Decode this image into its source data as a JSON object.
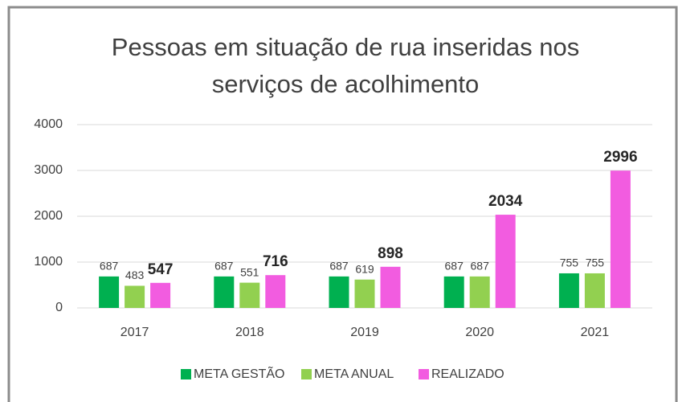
{
  "chart_data": {
    "type": "bar",
    "title": "Pessoas em situação de rua inseridas nos serviços de acolhimento",
    "categories": [
      "2017",
      "2018",
      "2019",
      "2020",
      "2021"
    ],
    "series": [
      {
        "name": "META GESTÃO",
        "color": "#00b050",
        "values": [
          687,
          687,
          687,
          687,
          755
        ]
      },
      {
        "name": "META ANUAL",
        "color": "#92d050",
        "values": [
          483,
          551,
          619,
          687,
          755
        ]
      },
      {
        "name": "REALIZADO",
        "color": "#f25ce0",
        "values": [
          547,
          716,
          898,
          2034,
          2996
        ]
      }
    ],
    "ylim": [
      0,
      4000
    ],
    "yticks": [
      0,
      1000,
      2000,
      3000,
      4000
    ],
    "grid": true,
    "legend": "bottom"
  }
}
